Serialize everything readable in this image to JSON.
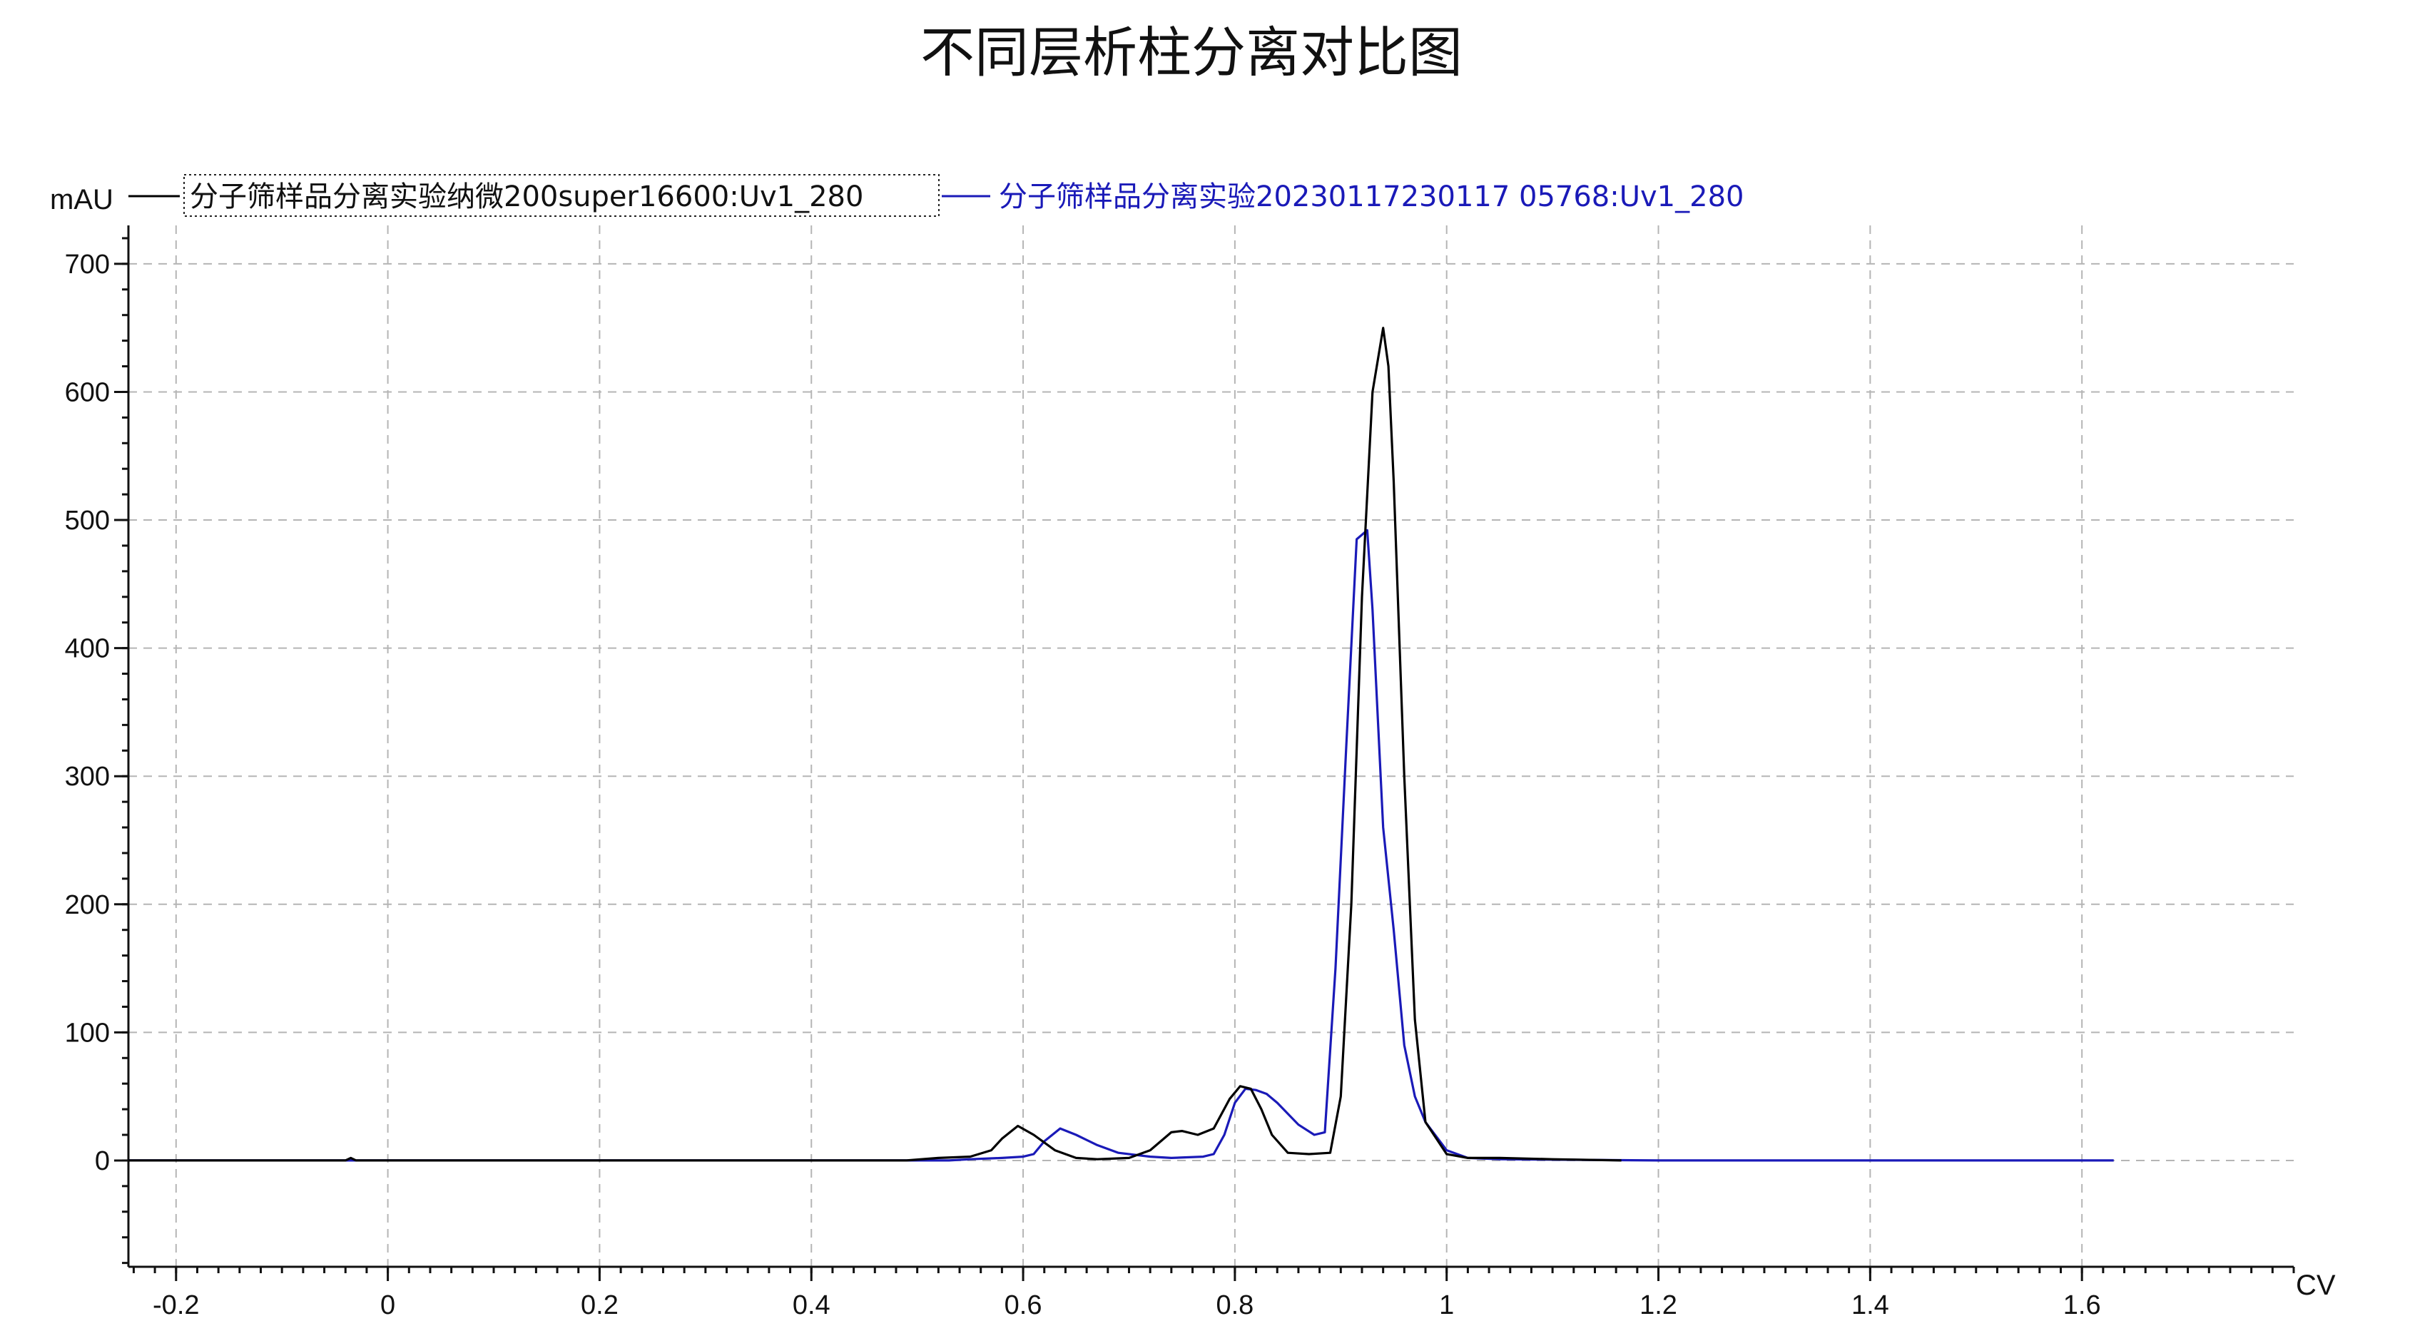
{
  "chart_data": {
    "type": "line",
    "title": "不同层析柱分离对比图",
    "xlabel": "CV",
    "ylabel": "mAU",
    "xlim": [
      -0.245,
      1.8
    ],
    "ylim": [
      -83,
      730
    ],
    "x_ticks": [
      -0.2,
      0,
      0.2,
      0.4,
      0.6,
      0.8,
      1,
      1.2,
      1.4,
      1.6
    ],
    "x_tick_labels": [
      "-0.2",
      "0",
      "0.2",
      "0.4",
      "0.6",
      "0.8",
      "1",
      "1.2",
      "1.4",
      "1.6"
    ],
    "y_ticks": [
      0,
      100,
      200,
      300,
      400,
      500,
      600,
      700
    ],
    "y_tick_labels": [
      "0",
      "100",
      "200",
      "300",
      "400",
      "500",
      "600",
      "700"
    ],
    "grid": true,
    "legend_position": "top-left",
    "series": [
      {
        "name": "分子筛样品分离实验纳微200super16600:Uv1_280",
        "color": "#000000",
        "x": [
          -0.245,
          -0.04,
          -0.035,
          -0.03,
          0.49,
          0.52,
          0.55,
          0.57,
          0.58,
          0.595,
          0.61,
          0.63,
          0.65,
          0.67,
          0.7,
          0.72,
          0.74,
          0.75,
          0.765,
          0.78,
          0.795,
          0.805,
          0.815,
          0.825,
          0.835,
          0.85,
          0.87,
          0.89,
          0.9,
          0.91,
          0.92,
          0.93,
          0.94,
          0.945,
          0.95,
          0.96,
          0.97,
          0.98,
          1.0,
          1.02,
          1.05,
          1.1,
          1.165
        ],
        "y": [
          0,
          0,
          2,
          0,
          0,
          2,
          3,
          8,
          17,
          27,
          20,
          8,
          2,
          1,
          2,
          8,
          22,
          23,
          20,
          25,
          48,
          58,
          56,
          40,
          20,
          6,
          5,
          6,
          50,
          200,
          440,
          600,
          650,
          620,
          530,
          300,
          110,
          30,
          5,
          2,
          2,
          1,
          0
        ]
      },
      {
        "name": "分子筛样品分离实验20230117230117 05768:Uv1_280",
        "color": "#1a1ab8",
        "x": [
          -0.245,
          0.53,
          0.55,
          0.58,
          0.6,
          0.61,
          0.62,
          0.635,
          0.65,
          0.67,
          0.69,
          0.72,
          0.74,
          0.77,
          0.78,
          0.79,
          0.8,
          0.81,
          0.82,
          0.83,
          0.84,
          0.86,
          0.875,
          0.885,
          0.895,
          0.905,
          0.915,
          0.925,
          0.93,
          0.94,
          0.95,
          0.96,
          0.97,
          0.98,
          1.0,
          1.02,
          1.05,
          1.2,
          1.4,
          1.63
        ],
        "y": [
          0,
          0,
          1,
          2,
          3,
          5,
          15,
          25,
          20,
          12,
          6,
          3,
          2,
          3,
          5,
          20,
          45,
          56,
          55,
          52,
          45,
          28,
          20,
          22,
          150,
          320,
          485,
          492,
          430,
          260,
          180,
          90,
          50,
          30,
          8,
          2,
          1,
          0,
          0,
          0
        ]
      }
    ]
  }
}
